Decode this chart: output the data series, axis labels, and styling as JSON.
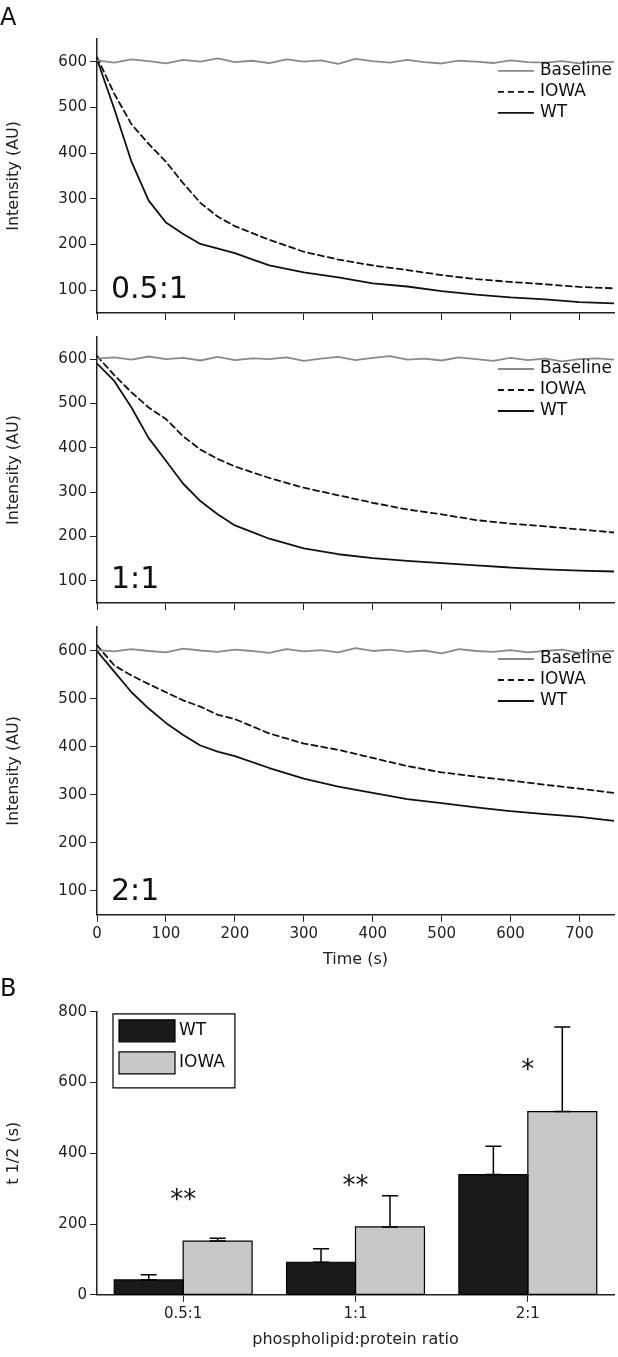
{
  "chart_data": [
    {
      "type": "line",
      "title": "A",
      "ylabel": "Intensity (AU)",
      "xlim": [
        0,
        750
      ],
      "xticks": [
        0,
        100,
        200,
        300,
        400,
        500,
        600,
        700
      ],
      "ylim": [
        50,
        650
      ],
      "yticks": [
        100,
        200,
        300,
        400,
        500,
        600
      ],
      "tick_labels": "y",
      "legend": "top right",
      "marker": "none",
      "annotations": [
        "0.5:1"
      ],
      "x": [
        0,
        25,
        50,
        75,
        100,
        125,
        150,
        175,
        200,
        225,
        250,
        275,
        300,
        325,
        350,
        375,
        400,
        425,
        450,
        475,
        500,
        525,
        550,
        575,
        600,
        625,
        650,
        675,
        700,
        725,
        750
      ],
      "series": [
        {
          "name": "Baseline",
          "color": "#8a8a8a",
          "line_style": "solid",
          "values": [
            603,
            598,
            605,
            601,
            596,
            604,
            600,
            607,
            599,
            602,
            597,
            605,
            600,
            603,
            595,
            606,
            601,
            598,
            604,
            599,
            596,
            602,
            600,
            597,
            603,
            599,
            598,
            601,
            596,
            600,
            599
          ]
        },
        {
          "name": "IOWA",
          "color": "#111111",
          "line_style": "dashed",
          "x": [
            0,
            25,
            50,
            75,
            100,
            125,
            150,
            175,
            200,
            250,
            300,
            350,
            400,
            450,
            500,
            550,
            600,
            650,
            700,
            750
          ],
          "values": [
            610,
            530,
            463,
            420,
            381,
            334,
            291,
            261,
            240,
            210,
            184,
            167,
            154,
            144,
            133,
            124,
            118,
            113,
            107,
            104
          ]
        },
        {
          "name": "WT",
          "color": "#111111",
          "line_style": "solid",
          "x": [
            0,
            25,
            50,
            75,
            100,
            125,
            150,
            200,
            250,
            300,
            350,
            400,
            450,
            500,
            550,
            600,
            650,
            700,
            750
          ],
          "values": [
            605,
            497,
            381,
            296,
            248,
            223,
            201,
            181,
            154,
            139,
            128,
            115,
            108,
            98,
            90,
            84,
            80,
            74,
            71
          ]
        }
      ]
    },
    {
      "type": "line",
      "ylabel": "Intensity (AU)",
      "xlim": [
        0,
        750
      ],
      "xticks": [
        0,
        100,
        200,
        300,
        400,
        500,
        600,
        700
      ],
      "ylim": [
        50,
        650
      ],
      "yticks": [
        100,
        200,
        300,
        400,
        500,
        600
      ],
      "tick_labels": "y",
      "legend": "top right",
      "marker": "none",
      "annotations": [
        "1:1"
      ],
      "x": [
        0,
        25,
        50,
        75,
        100,
        125,
        150,
        175,
        200,
        225,
        250,
        275,
        300,
        325,
        350,
        375,
        400,
        425,
        450,
        475,
        500,
        525,
        550,
        575,
        600,
        625,
        650,
        675,
        700,
        725,
        750
      ],
      "series": [
        {
          "name": "Baseline",
          "color": "#8a8a8a",
          "line_style": "solid",
          "values": [
            601,
            604,
            599,
            606,
            600,
            603,
            597,
            605,
            598,
            602,
            600,
            604,
            596,
            601,
            605,
            598,
            603,
            607,
            599,
            601,
            597,
            604,
            600,
            596,
            603,
            598,
            601,
            595,
            600,
            602,
            599
          ]
        },
        {
          "name": "IOWA",
          "color": "#111111",
          "line_style": "dashed",
          "x": [
            0,
            25,
            50,
            75,
            100,
            125,
            150,
            175,
            200,
            250,
            300,
            350,
            400,
            450,
            500,
            550,
            600,
            650,
            700,
            750
          ],
          "values": [
            607,
            564,
            525,
            491,
            465,
            426,
            396,
            375,
            358,
            332,
            310,
            293,
            276,
            261,
            250,
            237,
            229,
            223,
            216,
            209
          ]
        },
        {
          "name": "WT",
          "color": "#111111",
          "line_style": "solid",
          "x": [
            0,
            25,
            50,
            75,
            100,
            125,
            150,
            175,
            200,
            250,
            300,
            350,
            400,
            450,
            500,
            550,
            600,
            650,
            700,
            750
          ],
          "values": [
            590,
            551,
            491,
            422,
            371,
            319,
            280,
            250,
            225,
            195,
            173,
            160,
            151,
            145,
            140,
            135,
            130,
            126,
            123,
            121
          ]
        }
      ]
    },
    {
      "type": "line",
      "ylabel": "Intensity (AU)",
      "xlabel": "Time (s)",
      "xlim": [
        0,
        750
      ],
      "xticks": [
        0,
        100,
        200,
        300,
        400,
        500,
        600,
        700
      ],
      "ylim": [
        50,
        650
      ],
      "yticks": [
        100,
        200,
        300,
        400,
        500,
        600
      ],
      "legend": "top right",
      "marker": "none",
      "annotations": [
        "2:1"
      ],
      "x": [
        0,
        25,
        50,
        75,
        100,
        125,
        150,
        175,
        200,
        225,
        250,
        275,
        300,
        325,
        350,
        375,
        400,
        425,
        450,
        475,
        500,
        525,
        550,
        575,
        600,
        625,
        650,
        675,
        700,
        725,
        750
      ],
      "series": [
        {
          "name": "Baseline",
          "color": "#8a8a8a",
          "line_style": "solid",
          "values": [
            602,
            599,
            604,
            600,
            597,
            605,
            601,
            598,
            603,
            600,
            596,
            604,
            599,
            602,
            597,
            606,
            600,
            603,
            598,
            601,
            595,
            604,
            600,
            598,
            602,
            597,
            600,
            603,
            596,
            599,
            600
          ]
        },
        {
          "name": "IOWA",
          "color": "#111111",
          "line_style": "dashed",
          "x": [
            0,
            25,
            50,
            75,
            100,
            125,
            150,
            175,
            200,
            250,
            300,
            350,
            400,
            450,
            500,
            550,
            600,
            650,
            700,
            750
          ],
          "values": [
            612,
            570,
            549,
            531,
            514,
            497,
            484,
            467,
            458,
            428,
            407,
            394,
            377,
            360,
            347,
            338,
            330,
            321,
            313,
            304
          ]
        },
        {
          "name": "WT",
          "color": "#111111",
          "line_style": "solid",
          "x": [
            0,
            25,
            50,
            75,
            100,
            125,
            150,
            175,
            200,
            250,
            300,
            350,
            400,
            450,
            500,
            550,
            600,
            650,
            700,
            750
          ],
          "values": [
            600,
            557,
            514,
            480,
            450,
            425,
            403,
            390,
            381,
            356,
            334,
            317,
            304,
            291,
            283,
            274,
            266,
            260,
            254,
            246
          ]
        }
      ]
    },
    {
      "type": "bar",
      "title": "B",
      "ylabel": "t 1/2 (s)",
      "xlabel": "phospholipid:protein ratio",
      "categories": [
        "0.5:1",
        "1:1",
        "2:1"
      ],
      "ylim": [
        0,
        800
      ],
      "yticks": [
        0,
        200,
        400,
        600,
        800
      ],
      "legend": "top left",
      "series": [
        {
          "name": "WT",
          "color": "#1a1a1a",
          "values": [
            42,
            92,
            340
          ],
          "errors": [
            [
              42,
              57
            ],
            [
              92,
              130
            ],
            [
              340,
              420
            ]
          ]
        },
        {
          "name": "IOWA",
          "color": "#c8c8c8",
          "values": [
            152,
            192,
            518
          ],
          "errors": [
            [
              152,
              160
            ],
            [
              192,
              280
            ],
            [
              518,
              757
            ]
          ]
        }
      ],
      "annotations": [
        "**",
        "**",
        "*"
      ]
    }
  ]
}
